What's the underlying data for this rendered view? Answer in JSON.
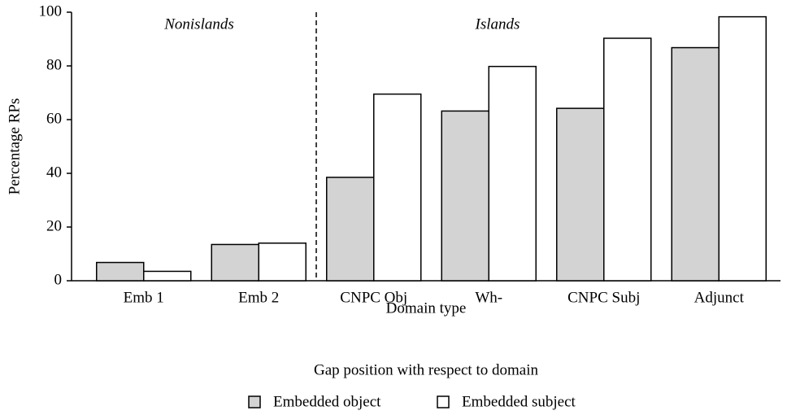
{
  "chart_data": {
    "type": "bar",
    "x_label": "Domain type",
    "y_label": "Percentage RPs",
    "annotations": [
      "Nonislands",
      "Islands"
    ],
    "legend_title": "Gap position with respect to domain",
    "categories": [
      "Emb 1",
      "Emb 2",
      "CNPC Obj",
      "Wh-",
      "CNPC Subj",
      "Adjunct"
    ],
    "series": [
      {
        "name": "Embedded object",
        "color": "#d3d3d3",
        "values": [
          6.8,
          13.5,
          38.5,
          63.2,
          64.2,
          86.8
        ]
      },
      {
        "name": "Embedded subject",
        "color": "#ffffff",
        "values": [
          3.5,
          14,
          69.5,
          79.8,
          90.3,
          98.3
        ]
      }
    ],
    "ylim": [
      0,
      100
    ],
    "yticks": [
      0,
      20,
      40,
      60,
      80,
      100
    ],
    "grid": false
  }
}
